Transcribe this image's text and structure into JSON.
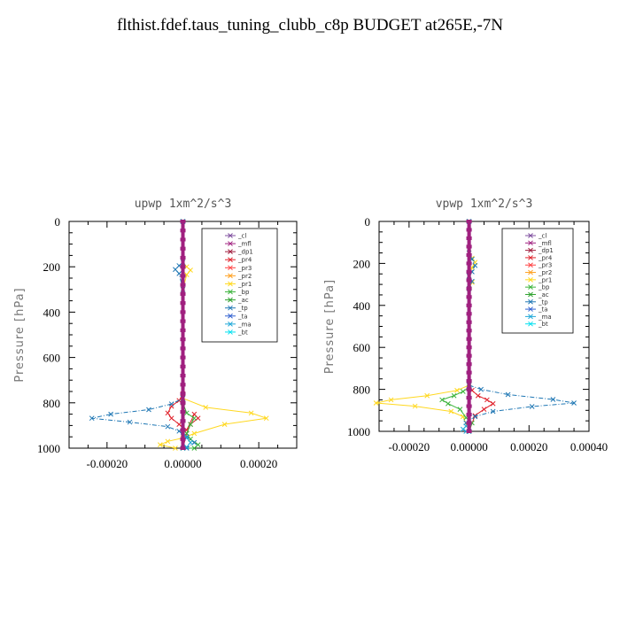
{
  "title": "flthist.fdef.taus_tuning_clubb_c8p  BUDGET at265E,-7N",
  "legend_labels": [
    "_cl",
    "_mfl",
    "_dp1",
    "_pr4",
    "_pr3",
    "_pr2",
    "_pr1",
    "_bp",
    "_ac",
    "_tp",
    "_ta",
    "_ma",
    "_bt"
  ],
  "series_colors": [
    "#7f4f9f",
    "#a0207f",
    "#a01c3c",
    "#e0202a",
    "#ff4040",
    "#ffa020",
    "#ffd820",
    "#3cb43c",
    "#2ca02c",
    "#1f77b4",
    "#3060d0",
    "#20a8d8",
    "#00e0f0"
  ],
  "chart_data": [
    {
      "type": "line",
      "title": "upwp   1xm^2/s^3",
      "ylabel": "Pressure [hPa]",
      "xlabel": "",
      "xlim": [
        -0.0003,
        0.0003
      ],
      "ylim": [
        1000,
        0
      ],
      "xticks": [
        -0.0002,
        0.0,
        0.0002
      ],
      "xtick_labels": [
        "-0.00020",
        "0.00000",
        "0.00020"
      ],
      "yticks": [
        0,
        200,
        400,
        600,
        800,
        1000
      ],
      "ytick_labels": [
        "0",
        "200",
        "400",
        "600",
        "800",
        "1000"
      ],
      "grid": false,
      "legend_position": "top-right",
      "series": [
        {
          "name": "_pr1",
          "x": [
            0,
            0,
            1e-05,
            2e-05,
            1e-05,
            0,
            0,
            6e-05,
            0.00018,
            0.00022,
            0.00011,
            3e-05,
            0,
            -4e-05,
            -6e-05,
            -2e-05
          ],
          "y": [
            0,
            180,
            200,
            215,
            235,
            300,
            780,
            820,
            845,
            868,
            895,
            935,
            955,
            970,
            985,
            1000
          ]
        },
        {
          "name": "_pr4",
          "x": [
            0,
            0,
            -1e-05,
            -3e-05,
            -4e-05,
            -3e-05,
            -1e-05,
            1e-05,
            3e-05,
            4e-05,
            2e-05,
            1e-05,
            0
          ],
          "y": [
            0,
            760,
            790,
            815,
            845,
            868,
            895,
            920,
            850,
            868,
            895,
            935,
            1000
          ]
        },
        {
          "name": "_bp",
          "x": [
            0,
            0,
            1e-05,
            3e-05,
            2e-05,
            1e-05,
            2e-05,
            4e-05,
            3e-05,
            0
          ],
          "y": [
            0,
            800,
            845,
            868,
            895,
            935,
            960,
            985,
            1000,
            1000
          ]
        },
        {
          "name": "_tp",
          "x": [
            0,
            0,
            -1e-05,
            -2e-05,
            -1e-05,
            0,
            0,
            -3e-05,
            -9e-05,
            -0.00019,
            -0.00024,
            -0.00014,
            -4e-05,
            -1e-05,
            1e-05,
            3e-05,
            1e-05
          ],
          "y": [
            0,
            180,
            195,
            212,
            230,
            300,
            780,
            805,
            830,
            850,
            868,
            885,
            905,
            925,
            950,
            975,
            1000
          ]
        },
        {
          "name": "_ma",
          "x": [
            0,
            0,
            1e-05,
            2e-05,
            1e-05,
            0
          ],
          "y": [
            0,
            930,
            955,
            975,
            995,
            1000
          ]
        },
        {
          "name": "_cl",
          "x": [
            0,
            0
          ],
          "y": [
            0,
            1000
          ]
        },
        {
          "name": "_mfl",
          "x": [
            0,
            0
          ],
          "y": [
            0,
            1000
          ]
        }
      ]
    },
    {
      "type": "line",
      "title": "vpwp   1xm^2/s^3",
      "ylabel": "Pressure [hPa]",
      "xlabel": "",
      "xlim": [
        -0.0003,
        0.0004
      ],
      "ylim": [
        1000,
        0
      ],
      "xticks": [
        -0.0002,
        0.0,
        0.0002,
        0.0004
      ],
      "xtick_labels": [
        "-0.00020",
        "0.00000",
        "0.00020",
        "0.00040"
      ],
      "yticks": [
        0,
        200,
        400,
        600,
        800,
        1000
      ],
      "ytick_labels": [
        "0",
        "200",
        "400",
        "600",
        "800",
        "1000"
      ],
      "grid": false,
      "legend_position": "top-right",
      "series": [
        {
          "name": "_pr1",
          "x": [
            0,
            0,
            1e-05,
            2e-05,
            1e-05,
            0,
            1e-05,
            0,
            0,
            -4e-05,
            -0.00014,
            -0.00026,
            -0.00031,
            -0.00018,
            -6e-05,
            -2e-05,
            0
          ],
          "y": [
            0,
            150,
            175,
            195,
            220,
            260,
            290,
            320,
            780,
            805,
            830,
            850,
            865,
            880,
            905,
            930,
            1000
          ]
        },
        {
          "name": "_pr4",
          "x": [
            0,
            0,
            1e-05,
            3e-05,
            6e-05,
            8e-05,
            5e-05,
            2e-05,
            0
          ],
          "y": [
            0,
            780,
            805,
            830,
            850,
            868,
            895,
            925,
            1000
          ]
        },
        {
          "name": "_bp",
          "x": [
            0,
            0,
            -2e-05,
            -5e-05,
            -9e-05,
            -7e-05,
            -3e-05,
            -1e-05,
            1e-05,
            0
          ],
          "y": [
            0,
            790,
            810,
            830,
            850,
            868,
            895,
            935,
            960,
            1000
          ]
        },
        {
          "name": "_tp",
          "x": [
            0,
            0,
            1e-05,
            2e-05,
            1e-05,
            0,
            1e-05,
            0,
            0,
            4e-05,
            0.00013,
            0.00028,
            0.00035,
            0.00021,
            8e-05,
            2e-05,
            -1e-05,
            0
          ],
          "y": [
            0,
            150,
            180,
            210,
            240,
            260,
            285,
            320,
            780,
            800,
            825,
            848,
            865,
            882,
            905,
            930,
            960,
            1000
          ]
        },
        {
          "name": "_ma",
          "x": [
            0,
            0,
            -1e-05,
            -2e-05,
            -1e-05,
            0
          ],
          "y": [
            0,
            960,
            975,
            990,
            1000,
            1000
          ]
        },
        {
          "name": "_cl",
          "x": [
            0,
            0
          ],
          "y": [
            0,
            1000
          ]
        },
        {
          "name": "_mfl",
          "x": [
            0,
            0
          ],
          "y": [
            0,
            1000
          ]
        }
      ]
    }
  ]
}
